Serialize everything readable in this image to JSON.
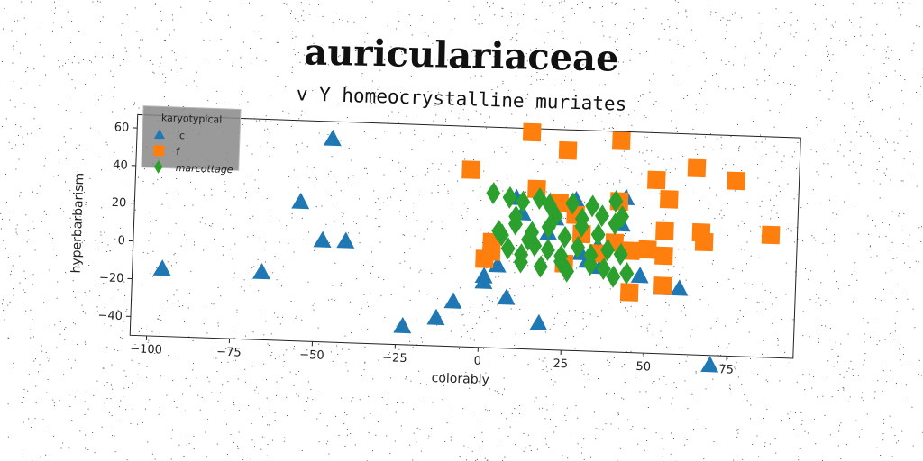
{
  "header": {
    "title": "auriculariaceae",
    "subtitle": "v Y homeocrystalline muriates"
  },
  "chart_data": {
    "type": "scatter",
    "xlabel": "colorably",
    "ylabel": "hyperbarbarism",
    "xlim": [
      -105,
      95
    ],
    "ylim": [
      -50,
      67
    ],
    "x_ticks": [
      -100,
      -75,
      -50,
      -25,
      0,
      25,
      50,
      75
    ],
    "y_ticks": [
      -40,
      -20,
      0,
      20,
      40,
      60
    ],
    "x_tick_labels": [
      "−100",
      "−75",
      "−50",
      "−25",
      "0",
      "25",
      "50",
      "75"
    ],
    "y_tick_labels": [
      "−40",
      "−20",
      "0",
      "20",
      "40",
      "60"
    ],
    "grid": false,
    "legend": {
      "title": "karyotypical",
      "placement": "top-left"
    },
    "series": [
      {
        "name": "ic",
        "marker": "triangle",
        "color": "#1f77b4",
        "points": [
          [
            -96,
            -14
          ],
          [
            -46,
            58
          ],
          [
            -55,
            24
          ],
          [
            -48,
            4
          ],
          [
            -41,
            4
          ],
          [
            -66,
            -14
          ],
          [
            -23,
            -40
          ],
          [
            -13,
            -35
          ],
          [
            -8,
            -26
          ],
          [
            1,
            -12
          ],
          [
            8,
            -23
          ],
          [
            18,
            -36
          ],
          [
            1,
            -15
          ],
          [
            5,
            -6
          ],
          [
            10,
            30
          ],
          [
            12,
            22
          ],
          [
            20,
            12
          ],
          [
            22,
            20
          ],
          [
            28,
            30
          ],
          [
            30,
            15
          ],
          [
            32,
            -2
          ],
          [
            35,
            6
          ],
          [
            36,
            -5
          ],
          [
            40,
            8
          ],
          [
            42,
            18
          ],
          [
            43,
            32
          ],
          [
            48,
            -9
          ],
          [
            55,
            -15
          ],
          [
            60,
            -15
          ],
          [
            70,
            -55
          ],
          [
            30,
            2
          ]
        ]
      },
      {
        "name": "f",
        "marker": "square",
        "color": "#ff7f0e",
        "points": [
          [
            -4,
            44
          ],
          [
            14,
            65
          ],
          [
            25,
            56
          ],
          [
            41,
            62
          ],
          [
            16,
            35
          ],
          [
            23,
            28
          ],
          [
            28,
            22
          ],
          [
            41,
            30
          ],
          [
            52,
            42
          ],
          [
            56,
            32
          ],
          [
            64,
            49
          ],
          [
            76,
            43
          ],
          [
            87,
            15
          ],
          [
            66,
            15
          ],
          [
            67,
            10
          ],
          [
            55,
            15
          ],
          [
            50,
            5
          ],
          [
            55,
            2
          ],
          [
            45,
            -18
          ],
          [
            55,
            -14
          ],
          [
            3,
            6
          ],
          [
            3,
            1
          ],
          [
            1,
            -3
          ],
          [
            25,
            -4
          ],
          [
            30,
            12
          ],
          [
            35,
            2
          ],
          [
            40,
            8
          ],
          [
            45,
            4
          ]
        ]
      },
      {
        "name": "marcottage",
        "marker": "diamond",
        "color": "#2ca02c",
        "points": [
          [
            3,
            32
          ],
          [
            8,
            30
          ],
          [
            12,
            28
          ],
          [
            17,
            30
          ],
          [
            20,
            27
          ],
          [
            27,
            28
          ],
          [
            33,
            27
          ],
          [
            36,
            22
          ],
          [
            40,
            30
          ],
          [
            42,
            22
          ],
          [
            5,
            12
          ],
          [
            10,
            16
          ],
          [
            15,
            12
          ],
          [
            20,
            15
          ],
          [
            25,
            10
          ],
          [
            30,
            16
          ],
          [
            35,
            12
          ],
          [
            40,
            18
          ],
          [
            8,
            3
          ],
          [
            12,
            0
          ],
          [
            16,
            5
          ],
          [
            20,
            3
          ],
          [
            24,
            0
          ],
          [
            29,
            5
          ],
          [
            33,
            1
          ],
          [
            38,
            4
          ],
          [
            42,
            2
          ],
          [
            12,
            -4
          ],
          [
            18,
            -6
          ],
          [
            24,
            -3
          ],
          [
            33,
            -4
          ],
          [
            37,
            -6
          ],
          [
            40,
            -10
          ],
          [
            44,
            -8
          ],
          [
            10,
            20
          ],
          [
            22,
            21
          ],
          [
            30,
            20
          ],
          [
            14,
            8
          ],
          [
            26,
            -8
          ],
          [
            6,
            10
          ]
        ]
      }
    ]
  }
}
